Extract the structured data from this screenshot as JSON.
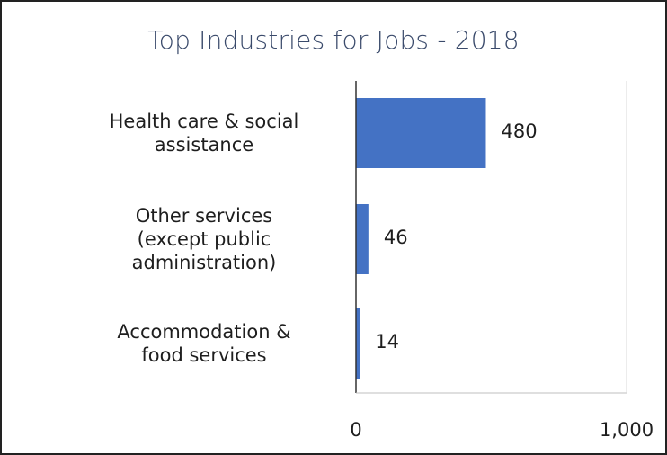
{
  "chart_data": {
    "type": "bar",
    "orientation": "horizontal",
    "title": "Top Industries for Jobs - 2018",
    "xlabel": "",
    "ylabel": "",
    "categories": [
      [
        "Health care & social",
        "assistance"
      ],
      [
        "Other services",
        "(except public",
        "administration)"
      ],
      [
        "Accommodation &",
        "food services"
      ]
    ],
    "values": [
      480,
      46,
      14
    ],
    "value_labels": [
      "480",
      "46",
      "14"
    ],
    "xlim": [
      0,
      1000
    ],
    "x_ticks": [
      0,
      1000
    ],
    "x_tick_labels": [
      "0",
      "1,000"
    ],
    "grid": false,
    "legend": "none"
  },
  "colors": {
    "bar": "#4472c4",
    "title": "#3a4a6b",
    "text": "#1e1e1e",
    "axis": "#333333",
    "frame": "#222222"
  }
}
